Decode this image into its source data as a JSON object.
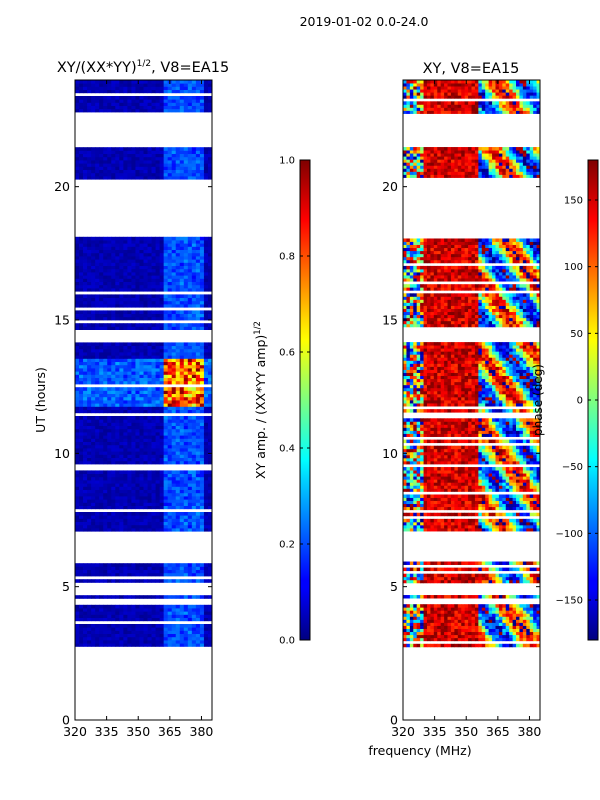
{
  "figure": {
    "suptitle": "2019-01-02 0.0-24.0",
    "shared_xlabel": "frequency (MHz)"
  },
  "chart_data": [
    {
      "type": "heatmap",
      "title_main": "XY/(XX*YY)",
      "title_exp": "1/2",
      "title_suffix": ", V8=EA15",
      "ylabel": "UT (hours)",
      "xlim": [
        320,
        385
      ],
      "ylim": [
        0,
        24
      ],
      "xticks": [
        320,
        335,
        350,
        365,
        380
      ],
      "yticks": [
        0,
        5,
        10,
        15,
        20
      ],
      "colormap": "jet",
      "data_hour_bands": [
        [
          2.75,
          4.35
        ],
        [
          4.6,
          4.7
        ],
        [
          5.2,
          5.9
        ],
        [
          7.1,
          7.75
        ],
        [
          7.9,
          9.45
        ],
        [
          9.65,
          11.45
        ],
        [
          11.5,
          14.15
        ],
        [
          14.7,
          16.0
        ],
        [
          16.1,
          18.1
        ],
        [
          20.3,
          21.5
        ],
        [
          22.75,
          24.0
        ]
      ],
      "values_note": "amplitude ratio; low (~0.05) at most frequencies, elevated near 360-380 MHz, high (0.8-1.0) near 11.7-13.5 h",
      "colorbar": {
        "label_main": "XY amp. / (XX*YY amp)",
        "label_exp": "1/2",
        "range": [
          0.0,
          1.0
        ],
        "ticks": [
          "0.0",
          "0.2",
          "0.4",
          "0.6",
          "0.8",
          "1.0"
        ]
      }
    },
    {
      "type": "heatmap",
      "title": "XY, V8=EA15",
      "xlim": [
        320,
        385
      ],
      "ylim": [
        0,
        24
      ],
      "xticks": [
        320,
        335,
        350,
        365,
        380
      ],
      "yticks": [
        0,
        5,
        10,
        15,
        20
      ],
      "colormap": "jet",
      "data_hour_bands": [
        [
          2.75,
          4.35
        ],
        [
          4.6,
          4.7
        ],
        [
          5.2,
          5.9
        ],
        [
          7.1,
          7.75
        ],
        [
          7.9,
          9.45
        ],
        [
          9.65,
          11.45
        ],
        [
          11.5,
          14.15
        ],
        [
          14.7,
          16.0
        ],
        [
          16.1,
          18.1
        ],
        [
          20.3,
          21.5
        ],
        [
          22.75,
          24.0
        ]
      ],
      "values_note": "phase in degrees; noisy at low frequencies, ~+150 deg near 330-355 MHz, varying at high frequencies",
      "colorbar": {
        "label": "phase (deg)",
        "range": [
          -180,
          180
        ],
        "ticks": [
          "150",
          "100",
          "50",
          "0",
          "−50",
          "−100",
          "−150"
        ],
        "tick_values": [
          150,
          100,
          50,
          0,
          -50,
          -100,
          -150
        ]
      }
    }
  ]
}
